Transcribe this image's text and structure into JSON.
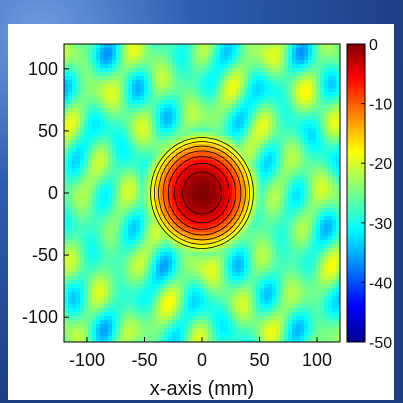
{
  "chart_data": {
    "type": "heatmap",
    "title": "",
    "xlabel": "x-axis (mm)",
    "ylabel": "",
    "xlim": [
      -120,
      120
    ],
    "ylim": [
      -120,
      120
    ],
    "x_ticks": [
      "-100",
      "-50",
      "0",
      "50",
      "100"
    ],
    "y_ticks": [
      "100",
      "50",
      "0",
      "-50",
      "-100"
    ],
    "colorbar": {
      "min": -50,
      "max": 0,
      "ticks": [
        "0",
        "-10",
        "-20",
        "-30",
        "-40",
        "-50"
      ],
      "colormap": "jet"
    },
    "peak": {
      "x": 0,
      "y": 0,
      "value": 0
    },
    "contour_step_db": 3,
    "colors": {
      "max": "#7f0000",
      "high": "#ff3a00",
      "mid": "#ffff40",
      "low_mid": "#40ffbf",
      "low": "#0070ff",
      "min": "#00008f"
    }
  }
}
